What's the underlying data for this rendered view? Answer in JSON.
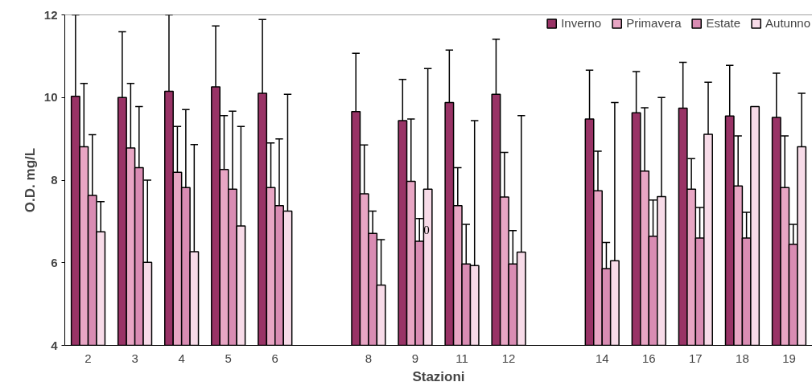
{
  "chart_data": {
    "type": "bar",
    "xlabel": "Stazioni",
    "ylabel": "O.D. mg/L",
    "categories": [
      "2",
      "3",
      "4",
      "5",
      "6",
      null,
      "8",
      "9",
      "11",
      "12",
      null,
      "14",
      "16",
      "17",
      "18",
      "19"
    ],
    "ylim": [
      4,
      12
    ],
    "yticks": [
      4,
      6,
      8,
      10,
      12
    ],
    "grid": false,
    "legend": "top right",
    "series": [
      {
        "name": "Inverno",
        "color": "#993366",
        "values": [
          10.03,
          10.0,
          10.15,
          10.26,
          10.1,
          null,
          9.66,
          9.44,
          9.88,
          10.08,
          null,
          9.48,
          9.63,
          9.74,
          9.55,
          9.52
        ],
        "errors": [
          [
            10.03,
            12
          ],
          [
            10.0,
            11.59
          ],
          [
            10.15,
            12
          ],
          [
            10.26,
            11.73
          ],
          [
            10.1,
            11.89
          ],
          null,
          [
            9.66,
            11.07
          ],
          [
            9.44,
            10.44
          ],
          [
            9.88,
            11.15
          ],
          [
            10.08,
            11.41
          ],
          null,
          [
            9.48,
            10.66
          ],
          [
            9.63,
            10.63
          ],
          [
            9.74,
            10.85
          ],
          [
            9.55,
            10.78
          ],
          [
            9.52,
            10.59
          ]
        ]
      },
      {
        "name": "Primavera",
        "color": "#e8a6c4",
        "values": [
          8.81,
          8.78,
          8.19,
          8.26,
          7.82,
          null,
          7.67,
          7.97,
          7.38,
          7.59,
          null,
          7.74,
          8.22,
          7.78,
          7.86,
          7.82
        ],
        "errors": [
          [
            8.81,
            10.34
          ],
          [
            8.78,
            10.34
          ],
          [
            8.19,
            9.3
          ],
          [
            8.26,
            9.56
          ],
          [
            7.82,
            8.9
          ],
          null,
          [
            7.67,
            8.85
          ],
          [
            7.97,
            9.48
          ],
          [
            7.38,
            8.3
          ],
          [
            7.59,
            8.67
          ],
          null,
          [
            7.74,
            8.7
          ],
          [
            8.22,
            9.75
          ],
          [
            7.78,
            8.52
          ],
          [
            7.86,
            9.07
          ],
          [
            7.82,
            9.07
          ]
        ]
      },
      {
        "name": "Estate",
        "color": "#d98cb3",
        "values": [
          7.63,
          8.3,
          7.82,
          7.78,
          7.38,
          null,
          6.71,
          6.52,
          5.97,
          5.97,
          null,
          5.86,
          6.64,
          6.6,
          6.6,
          6.45
        ],
        "errors": [
          [
            7.63,
            9.1
          ],
          [
            8.3,
            9.78
          ],
          [
            7.82,
            9.71
          ],
          [
            7.78,
            9.67
          ],
          [
            7.38,
            9.0
          ],
          null,
          [
            6.71,
            7.25
          ],
          [
            6.52,
            7.07
          ],
          [
            5.97,
            6.93
          ],
          [
            5.97,
            6.78
          ],
          null,
          [
            5.86,
            6.49
          ],
          [
            6.64,
            7.52
          ],
          [
            6.6,
            7.34
          ],
          [
            6.6,
            7.22
          ],
          [
            6.45,
            6.93
          ]
        ]
      },
      {
        "name": "Autunno",
        "color": "#f7dbe8",
        "values": [
          6.75,
          6.01,
          6.27,
          6.89,
          7.25,
          null,
          5.46,
          7.78,
          5.93,
          6.26,
          null,
          6.05,
          7.6,
          9.11,
          9.78,
          8.81
        ],
        "errors": [
          [
            6.75,
            7.48
          ],
          [
            6.01,
            8.0
          ],
          [
            6.27,
            8.86
          ],
          [
            6.89,
            9.3
          ],
          [
            7.25,
            10.08
          ],
          null,
          [
            5.46,
            6.56
          ],
          [
            7.78,
            10.7
          ],
          [
            5.93,
            9.44
          ],
          [
            6.26,
            9.56
          ],
          null,
          [
            6.05,
            9.88
          ],
          [
            7.6,
            10.0
          ],
          [
            9.11,
            10.37
          ],
          null,
          [
            8.81,
            10.1
          ]
        ]
      }
    ],
    "annotations": [
      {
        "text": "0",
        "x": "9",
        "y": 6.8
      }
    ]
  }
}
